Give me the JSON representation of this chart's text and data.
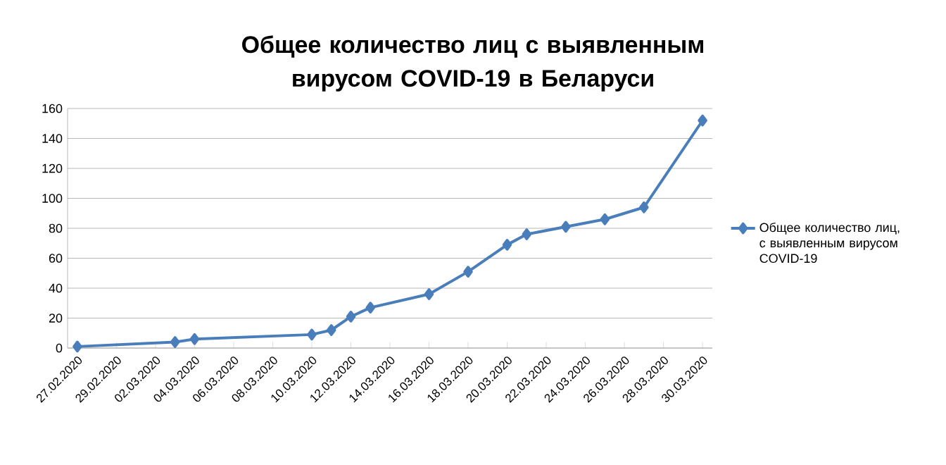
{
  "chart_data": {
    "type": "line",
    "title": "Общее количество лиц с выявленным вирусом COVID-19 в Беларуси",
    "x": [
      "2020-02-27",
      "2020-03-03",
      "2020-03-04",
      "2020-03-10",
      "2020-03-11",
      "2020-03-12",
      "2020-03-13",
      "2020-03-16",
      "2020-03-18",
      "2020-03-20",
      "2020-03-21",
      "2020-03-23",
      "2020-03-25",
      "2020-03-27",
      "2020-03-30"
    ],
    "series": [
      {
        "name": "Общее количество лиц, с выявленным вирусом COVID-19",
        "color": "#4a7ebb",
        "values": [
          1,
          4,
          6,
          9,
          12,
          21,
          27,
          36,
          51,
          69,
          76,
          81,
          86,
          94,
          152
        ]
      }
    ],
    "xlim": [
      "2020-02-26T12:00",
      "2020-03-30T12:00"
    ],
    "xticks": [
      {
        "value": "2020-02-27",
        "label": "27.02.2020"
      },
      {
        "value": "2020-02-29",
        "label": "29.02.2020"
      },
      {
        "value": "2020-03-02",
        "label": "02.03.2020"
      },
      {
        "value": "2020-03-04",
        "label": "04.03.2020"
      },
      {
        "value": "2020-03-06",
        "label": "06.03.2020"
      },
      {
        "value": "2020-03-08",
        "label": "08.03.2020"
      },
      {
        "value": "2020-03-10",
        "label": "10.03.2020"
      },
      {
        "value": "2020-03-12",
        "label": "12.03.2020"
      },
      {
        "value": "2020-03-14",
        "label": "14.03.2020"
      },
      {
        "value": "2020-03-16",
        "label": "16.03.2020"
      },
      {
        "value": "2020-03-18",
        "label": "18.03.2020"
      },
      {
        "value": "2020-03-20",
        "label": "20.03.2020"
      },
      {
        "value": "2020-03-22",
        "label": "22.03.2020"
      },
      {
        "value": "2020-03-24",
        "label": "24.03.2020"
      },
      {
        "value": "2020-03-26",
        "label": "26.03.2020"
      },
      {
        "value": "2020-03-28",
        "label": "28.03.2020"
      },
      {
        "value": "2020-03-30",
        "label": "30.03.2020"
      }
    ],
    "ylim": [
      0,
      160
    ],
    "yticks": [
      0,
      20,
      40,
      60,
      80,
      100,
      120,
      140,
      160
    ],
    "grid": "y",
    "legend": "right",
    "marker": "diamond",
    "line_style": "solid"
  }
}
